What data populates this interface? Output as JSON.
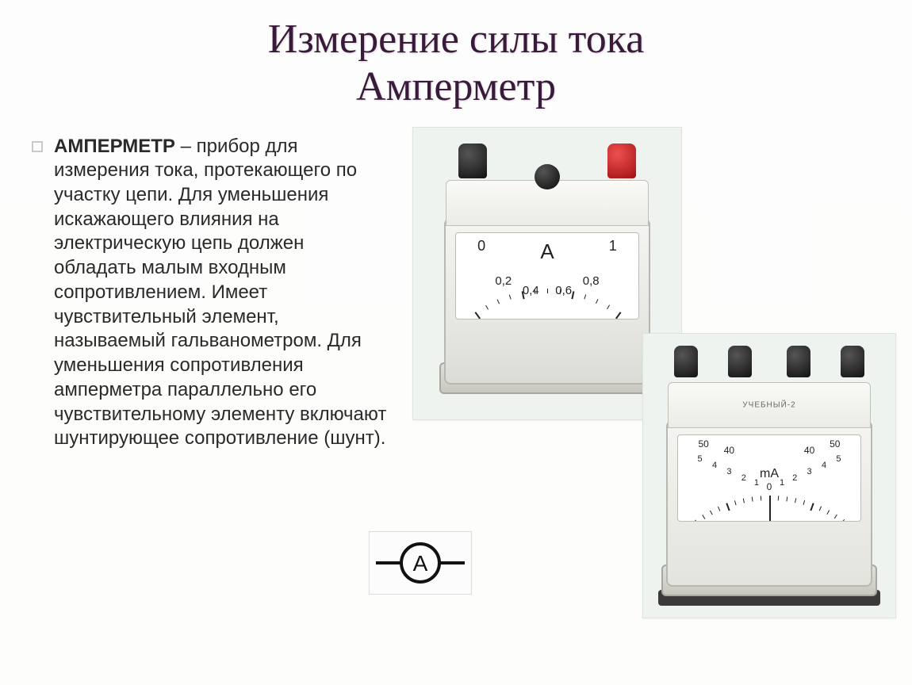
{
  "title_line1": "Измерение силы тока",
  "title_line2": "Амперметр",
  "title_fontsize": 52,
  "title_color": "#3a1a3a",
  "body_fontsize": 24,
  "body_color": "#2a2a2a",
  "background_color": "#fdfdfd",
  "definition_term": "АМПЕРМЕТР",
  "definition_body": " – прибор для измерения тока, протекающего по участку цепи. Для уменьшения искажающего влияния на электрическую цепь должен обладать малым входным сопротивлением. Имеет чувствительный элемент, называемый гальванометром. Для уменьшения сопротивления амперметра параллельно его чувствительному элементу включают шунтирующее сопротивление (шунт).",
  "symbol_letter": "A",
  "ammeter1": {
    "unit": "A",
    "scale_major_labels": [
      "0",
      "1"
    ],
    "scale_minor_labels": [
      "0,2",
      "0,4",
      "0,6",
      "0,8"
    ],
    "terminal_colors": [
      "#111111",
      "#c01818"
    ],
    "center_knob_color": "#0a0a0a",
    "body_color": "#ecece6",
    "dial_bg": "#ffffff",
    "tick_color": "#222222",
    "angle_range_deg": [
      -60,
      60
    ]
  },
  "ammeter2": {
    "unit": "mA",
    "label_text": "УЧЕБНЫЙ-2",
    "terminal_count": 4,
    "terminal_color": "#111111",
    "scale_left_labels": [
      "50",
      "40",
      "5",
      "4",
      "3",
      "2",
      "1"
    ],
    "scale_right_labels": [
      "40",
      "50",
      "1",
      "2",
      "3",
      "4",
      "5"
    ],
    "center_label": "0",
    "body_color": "#ecece6",
    "base_color": "#2a2a2a",
    "angle_range_deg": [
      -60,
      60
    ]
  }
}
